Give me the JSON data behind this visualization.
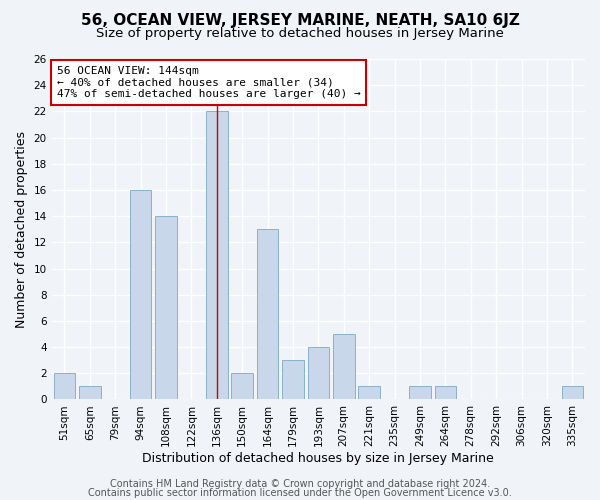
{
  "title": "56, OCEAN VIEW, JERSEY MARINE, NEATH, SA10 6JZ",
  "subtitle": "Size of property relative to detached houses in Jersey Marine",
  "xlabel": "Distribution of detached houses by size in Jersey Marine",
  "ylabel": "Number of detached properties",
  "bar_labels": [
    "51sqm",
    "65sqm",
    "79sqm",
    "94sqm",
    "108sqm",
    "122sqm",
    "136sqm",
    "150sqm",
    "164sqm",
    "179sqm",
    "193sqm",
    "207sqm",
    "221sqm",
    "235sqm",
    "249sqm",
    "264sqm",
    "278sqm",
    "292sqm",
    "306sqm",
    "320sqm",
    "335sqm"
  ],
  "bar_values": [
    2,
    1,
    0,
    16,
    14,
    0,
    22,
    2,
    13,
    3,
    4,
    5,
    1,
    0,
    1,
    1,
    0,
    0,
    0,
    0,
    1
  ],
  "bar_color": "#c8d8ea",
  "bar_edge_color": "#8ab0cc",
  "ylim": [
    0,
    26
  ],
  "yticks": [
    0,
    2,
    4,
    6,
    8,
    10,
    12,
    14,
    16,
    18,
    20,
    22,
    24,
    26
  ],
  "annotation_title": "56 OCEAN VIEW: 144sqm",
  "annotation_line1": "← 40% of detached houses are smaller (34)",
  "annotation_line2": "47% of semi-detached houses are larger (40) →",
  "annotation_box_facecolor": "#ffffff",
  "annotation_box_edgecolor": "#cc0000",
  "property_line_color": "#cc0000",
  "property_bar_index": 6,
  "footer_line1": "Contains HM Land Registry data © Crown copyright and database right 2024.",
  "footer_line2": "Contains public sector information licensed under the Open Government Licence v3.0.",
  "background_color": "#f0f4f8",
  "grid_color": "#ffffff",
  "title_fontsize": 11,
  "subtitle_fontsize": 9.5,
  "axis_label_fontsize": 9,
  "tick_fontsize": 7.5,
  "annotation_fontsize": 8,
  "footer_fontsize": 7
}
